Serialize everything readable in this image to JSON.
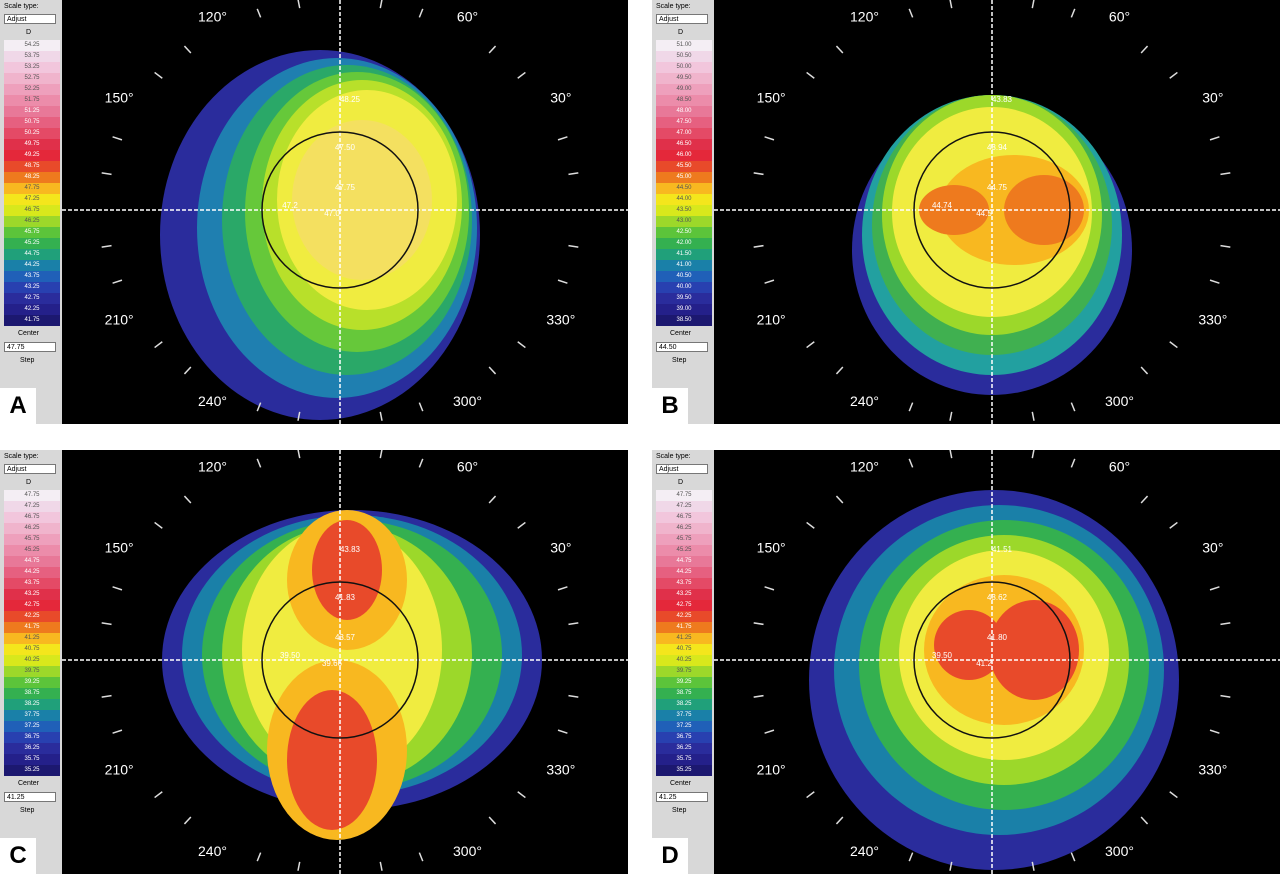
{
  "panels": [
    {
      "letter": "A",
      "scale_type_label": "Scale type:",
      "scale_type": "Adjust",
      "unit": "D",
      "scale": [
        "54.25",
        "53.75",
        "53.25",
        "52.75",
        "52.25",
        "51.75",
        "51.25",
        "50.75",
        "50.25",
        "49.75",
        "49.25",
        "48.75",
        "48.25",
        "47.75",
        "47.25",
        "46.75",
        "46.25",
        "45.75",
        "45.25",
        "44.75",
        "44.25",
        "43.75",
        "43.25",
        "42.75",
        "42.25",
        "41.75"
      ],
      "center_label": "Center",
      "center": "47.75",
      "step_label": "Step",
      "angles": [
        "120°",
        "60°",
        "150°",
        "30°",
        "210°",
        "330°",
        "240°",
        "300°"
      ],
      "readouts": [
        "48.25",
        "47.50",
        "47.75",
        "47.2",
        "47.0"
      ]
    },
    {
      "letter": "B",
      "scale_type_label": "Scale type:",
      "scale_type": "Adjust",
      "unit": "D",
      "scale": [
        "51.00",
        "50.50",
        "50.00",
        "49.50",
        "49.00",
        "48.50",
        "48.00",
        "47.50",
        "47.00",
        "46.50",
        "46.00",
        "45.50",
        "45.00",
        "44.50",
        "44.00",
        "43.50",
        "43.00",
        "42.50",
        "42.00",
        "41.50",
        "41.00",
        "40.50",
        "40.00",
        "39.50",
        "39.00",
        "38.50"
      ],
      "center_label": "Center",
      "center": "44.50",
      "step_label": "Step",
      "angles": [
        "120°",
        "60°",
        "150°",
        "30°",
        "210°",
        "330°",
        "240°",
        "300°"
      ],
      "readouts": [
        "43.83",
        "43.94",
        "44.75",
        "44.74",
        "44.5"
      ]
    },
    {
      "letter": "C",
      "scale_type_label": "Scale type:",
      "scale_type": "Adjust",
      "unit": "D",
      "scale": [
        "47.75",
        "47.25",
        "46.75",
        "46.25",
        "45.75",
        "45.25",
        "44.75",
        "44.25",
        "43.75",
        "43.25",
        "42.75",
        "42.25",
        "41.75",
        "41.25",
        "40.75",
        "40.25",
        "39.75",
        "39.25",
        "38.75",
        "38.25",
        "37.75",
        "37.25",
        "36.75",
        "36.25",
        "35.75",
        "35.25"
      ],
      "center_label": "Center",
      "center": "41.25",
      "step_label": "Step",
      "angles": [
        "120°",
        "60°",
        "150°",
        "30°",
        "210°",
        "330°",
        "240°",
        "300°"
      ],
      "readouts": [
        "43.83",
        "41.83",
        "43.57",
        "39.50",
        "39.66"
      ]
    },
    {
      "letter": "D",
      "scale_type_label": "Scale type:",
      "scale_type": "Adjust",
      "unit": "D",
      "scale": [
        "47.75",
        "47.25",
        "46.75",
        "46.25",
        "45.75",
        "45.25",
        "44.75",
        "44.25",
        "43.75",
        "43.25",
        "42.75",
        "42.25",
        "41.75",
        "41.25",
        "40.75",
        "40.25",
        "39.75",
        "39.25",
        "38.75",
        "38.25",
        "37.75",
        "37.25",
        "36.75",
        "36.25",
        "35.75",
        "35.25"
      ],
      "center_label": "Center",
      "center": "41.25",
      "step_label": "Step",
      "angles": [
        "120°",
        "60°",
        "150°",
        "30°",
        "210°",
        "330°",
        "240°",
        "300°"
      ],
      "readouts": [
        "41.51",
        "43.62",
        "41.80",
        "39.50",
        "41.2"
      ]
    }
  ]
}
